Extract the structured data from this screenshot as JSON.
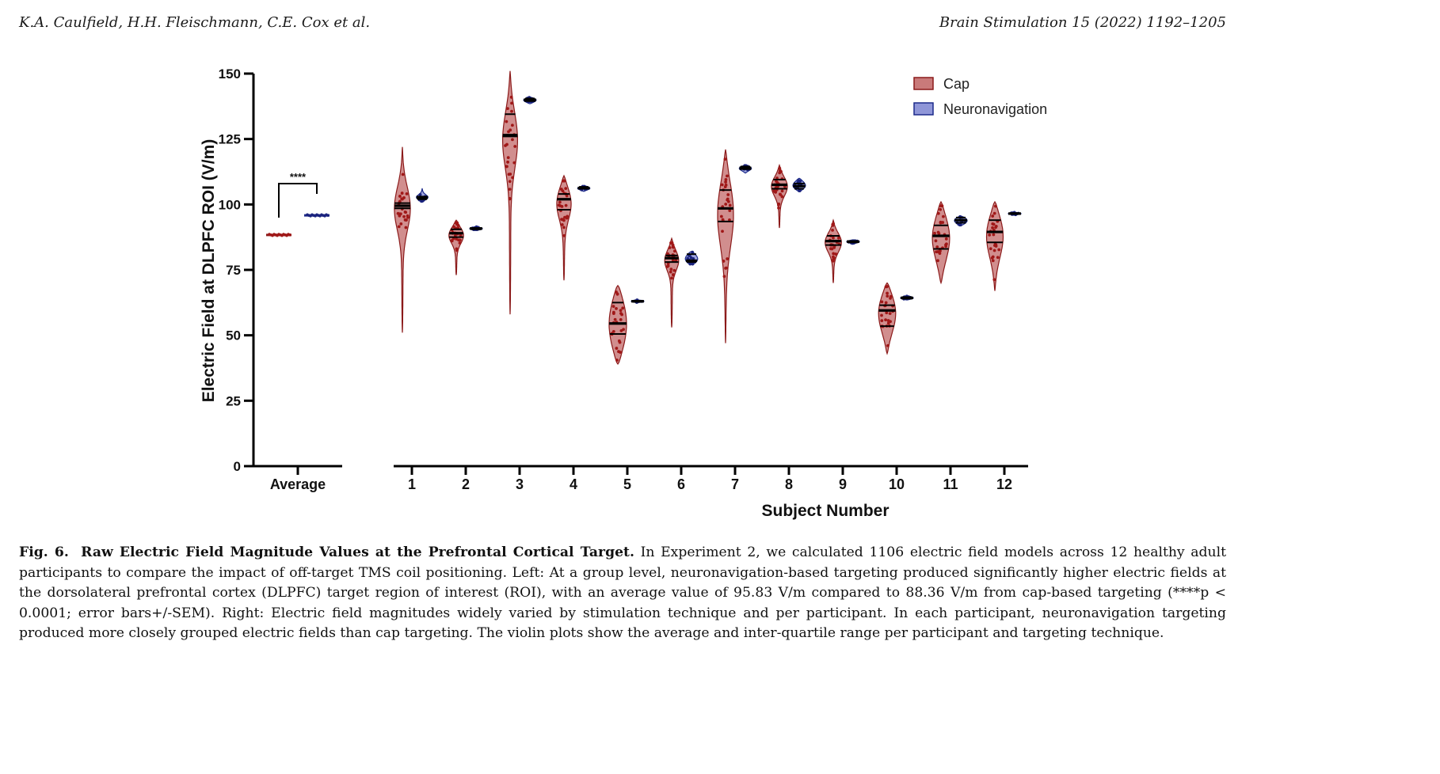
{
  "header": {
    "authors": "K.A. Caulfield, H.H. Fleischmann, C.E. Cox et al.",
    "journal": "Brain Stimulation 15 (2022) 1192–1205"
  },
  "chart_data": {
    "type": "violin",
    "ylabel": "Electric Field at DLPFC ROI (V/m)",
    "xlabel": "Subject Number",
    "ylim": [
      0,
      150
    ],
    "yticks": [
      0,
      25,
      50,
      75,
      100,
      125,
      150
    ],
    "legend": {
      "position": "top-right",
      "entries": [
        {
          "name": "Cap",
          "color": "#c97a7a"
        },
        {
          "name": "Neuronavigation",
          "color": "#8f96d8"
        }
      ]
    },
    "colors": {
      "cap_fill": "#c97a7a",
      "cap_edge": "#8b1a1a",
      "cap_dot": "#a01818",
      "nav_fill": "#8f96d8",
      "nav_edge": "#1c2a8a",
      "nav_dot": "#1a237e"
    },
    "average": {
      "label": "Average",
      "cap": 88.36,
      "neuronavigation": 95.83,
      "significance": "****"
    },
    "subjects": [
      {
        "label": "1",
        "cap": {
          "min": 51,
          "max": 122,
          "q1": 98.5,
          "median": 99.5,
          "q3": 100.5
        },
        "nav": {
          "min": 101,
          "max": 106,
          "q1": 102,
          "median": 102.5,
          "q3": 103
        }
      },
      {
        "label": "2",
        "cap": {
          "min": 73,
          "max": 94,
          "q1": 87.5,
          "median": 89,
          "q3": 90.5
        },
        "nav": {
          "min": 90,
          "max": 91.5,
          "q1": 90.5,
          "median": 90.8,
          "q3": 91
        }
      },
      {
        "label": "3",
        "cap": {
          "min": 58,
          "max": 151,
          "q1": 126,
          "median": 126.5,
          "q3": 134.5
        },
        "nav": {
          "min": 138.5,
          "max": 141,
          "q1": 139.5,
          "median": 140,
          "q3": 140.5
        }
      },
      {
        "label": "4",
        "cap": {
          "min": 71,
          "max": 111,
          "q1": 98,
          "median": 102,
          "q3": 104
        },
        "nav": {
          "min": 105,
          "max": 107,
          "q1": 106,
          "median": 106.3,
          "q3": 106.7
        }
      },
      {
        "label": "5",
        "cap": {
          "min": 39,
          "max": 69,
          "q1": 50.5,
          "median": 54.5,
          "q3": 62.5
        },
        "nav": {
          "min": 62.5,
          "max": 63.5,
          "q1": 62.8,
          "median": 63,
          "q3": 63.2
        }
      },
      {
        "label": "6",
        "cap": {
          "min": 53,
          "max": 87,
          "q1": 78,
          "median": 79.5,
          "q3": 80.5
        },
        "nav": {
          "min": 77,
          "max": 82,
          "q1": 78,
          "median": 78.5,
          "q3": 81
        }
      },
      {
        "label": "7",
        "cap": {
          "min": 47,
          "max": 121,
          "q1": 93.5,
          "median": 98.5,
          "q3": 105.5
        },
        "nav": {
          "min": 112,
          "max": 115,
          "q1": 113.5,
          "median": 114,
          "q3": 114.5
        }
      },
      {
        "label": "8",
        "cap": {
          "min": 91,
          "max": 115,
          "q1": 106,
          "median": 107.5,
          "q3": 109.5
        },
        "nav": {
          "min": 105,
          "max": 110,
          "q1": 106,
          "median": 107,
          "q3": 108
        }
      },
      {
        "label": "9",
        "cap": {
          "min": 70,
          "max": 94,
          "q1": 84.5,
          "median": 86,
          "q3": 88
        },
        "nav": {
          "min": 85,
          "max": 86.5,
          "q1": 85.5,
          "median": 85.8,
          "q3": 86
        }
      },
      {
        "label": "10",
        "cap": {
          "min": 43,
          "max": 70,
          "q1": 53.5,
          "median": 59.5,
          "q3": 61.5
        },
        "nav": {
          "min": 63.5,
          "max": 65,
          "q1": 64,
          "median": 64.3,
          "q3": 64.6
        }
      },
      {
        "label": "11",
        "cap": {
          "min": 70,
          "max": 101,
          "q1": 83,
          "median": 88,
          "q3": 92
        },
        "nav": {
          "min": 92,
          "max": 95.5,
          "q1": 93,
          "median": 94,
          "q3": 95
        }
      },
      {
        "label": "12",
        "cap": {
          "min": 67,
          "max": 101,
          "q1": 85.5,
          "median": 89.5,
          "q3": 94
        },
        "nav": {
          "min": 96,
          "max": 97,
          "q1": 96.3,
          "median": 96.5,
          "q3": 96.7
        }
      }
    ]
  },
  "caption": {
    "label": "Fig. 6.",
    "title": "Raw Electric Field Magnitude Values at the Prefrontal Cortical Target.",
    "text": "In Experiment 2, we calculated 1106 electric field models across 12 healthy adult participants to compare the impact of off-target TMS coil positioning. Left: At a group level, neuronavigation-based targeting produced significantly higher electric fields at the dorsolateral prefrontal cortex (DLPFC) target region of interest (ROI), with an average value of 95.83 V/m compared to 88.36 V/m from cap-based targeting (****p < 0.0001; error bars+/-SEM). Right: Electric field magnitudes widely varied by stimulation technique and per participant. In each participant, neuronavigation targeting produced more closely grouped electric fields than cap targeting. The violin plots show the average and inter-quartile range per participant and targeting technique."
  }
}
